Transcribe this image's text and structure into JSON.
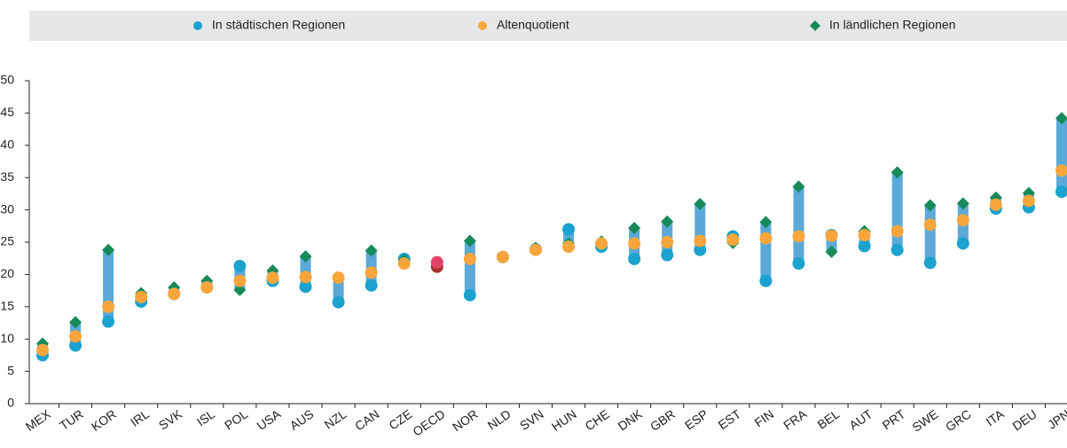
{
  "chart_data": {
    "type": "dot-range",
    "categories": [
      "MEX",
      "TUR",
      "KOR",
      "IRL",
      "SVK",
      "ISL",
      "POL",
      "USA",
      "AUS",
      "NZL",
      "CAN",
      "CZE",
      "OECD",
      "NOR",
      "NLD",
      "SVN",
      "HUN",
      "CHE",
      "DNK",
      "GBR",
      "ESP",
      "EST",
      "FIN",
      "FRA",
      "BEL",
      "AUT",
      "PRT",
      "SWE",
      "GRC",
      "ITA",
      "DEU",
      "JPN"
    ],
    "series": [
      {
        "name": "In städtischen Regionen",
        "color": "#1ba2cf",
        "highlight_color": "#a8322d",
        "values": [
          7.5,
          9,
          12.7,
          15.8,
          17,
          18,
          21.3,
          19,
          18.1,
          15.7,
          18.3,
          22.4,
          21.2,
          16.8,
          22.7,
          23.9,
          27,
          24.3,
          22.4,
          23,
          23.8,
          25.9,
          19,
          21.7,
          26.1,
          24.4,
          23.8,
          21.8,
          24.8,
          30.2,
          30.4,
          32.8
        ]
      },
      {
        "name": "Altenquotient",
        "color": "#f8a63c",
        "highlight_color": "#e0436a",
        "values": [
          8.3,
          10.4,
          15,
          16.5,
          17,
          18,
          19,
          19.5,
          19.6,
          19.5,
          20.3,
          21.7,
          21.9,
          22.4,
          22.7,
          23.8,
          24.3,
          24.8,
          24.8,
          25,
          25.2,
          25.4,
          25.6,
          25.9,
          26,
          26.1,
          26.7,
          27.7,
          28.4,
          30.8,
          31.4,
          36.1
        ]
      },
      {
        "name": "In ländlichen Regionen",
        "color": "#178a5a",
        "highlight_color": "#a8322d",
        "values": [
          9.3,
          12.6,
          23.8,
          17.1,
          18,
          19,
          17.6,
          20.6,
          22.8,
          19.5,
          23.7,
          22.2,
          21.9,
          25.2,
          22.7,
          24.1,
          24.8,
          25.1,
          27.2,
          28.2,
          30.9,
          24.9,
          28.1,
          33.6,
          23.5,
          26.7,
          35.8,
          30.7,
          31,
          31.9,
          32.6,
          44.2
        ]
      }
    ],
    "range_color": "#5aa9d8",
    "highlight_category": "OECD",
    "ylim": [
      0,
      50
    ],
    "yticks": [
      0,
      5,
      10,
      15,
      20,
      25,
      30,
      35,
      40,
      45,
      50
    ]
  }
}
